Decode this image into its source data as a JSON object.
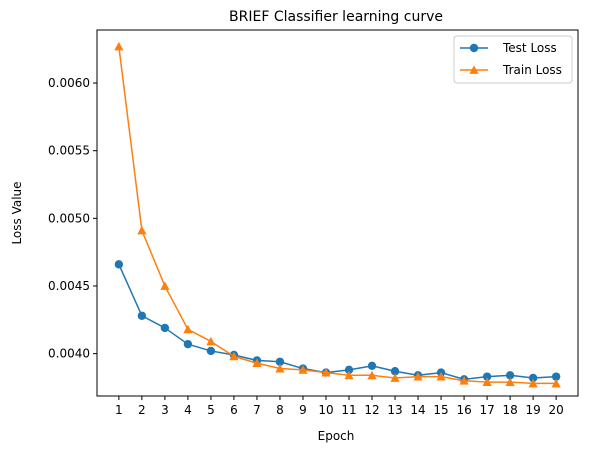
{
  "chart_data": {
    "type": "line",
    "title": "BRIEF Classifier learning curve",
    "xlabel": "Epoch",
    "ylabel": "Loss Value",
    "x": [
      1,
      2,
      3,
      4,
      5,
      6,
      7,
      8,
      9,
      10,
      11,
      12,
      13,
      14,
      15,
      16,
      17,
      18,
      19,
      20
    ],
    "x_ticks": [
      "1",
      "2",
      "3",
      "4",
      "5",
      "6",
      "7",
      "8",
      "9",
      "10",
      "11",
      "12",
      "13",
      "14",
      "15",
      "16",
      "17",
      "18",
      "19",
      "20"
    ],
    "y_ticks": [
      "0.0040",
      "0.0045",
      "0.0050",
      "0.0055",
      "0.0060"
    ],
    "xlim": [
      0.05,
      20.95
    ],
    "ylim": [
      0.003687,
      0.006392
    ],
    "grid": false,
    "legend_position": "top-right",
    "series": [
      {
        "name": "Test Loss",
        "color": "#1f77b4",
        "marker": "circle",
        "values": [
          0.00466,
          0.00428,
          0.00419,
          0.00407,
          0.00402,
          0.00399,
          0.00395,
          0.00394,
          0.00389,
          0.00386,
          0.00388,
          0.00391,
          0.00387,
          0.00384,
          0.00386,
          0.00381,
          0.00383,
          0.00384,
          0.00382,
          0.00383
        ]
      },
      {
        "name": "Train Loss",
        "color": "#ff7f0e",
        "marker": "triangle",
        "values": [
          0.00627,
          0.00491,
          0.0045,
          0.00418,
          0.00409,
          0.00398,
          0.00393,
          0.00389,
          0.00388,
          0.00386,
          0.00384,
          0.00384,
          0.00382,
          0.00383,
          0.00383,
          0.0038,
          0.00379,
          0.00379,
          0.00378,
          0.00378
        ]
      }
    ]
  }
}
